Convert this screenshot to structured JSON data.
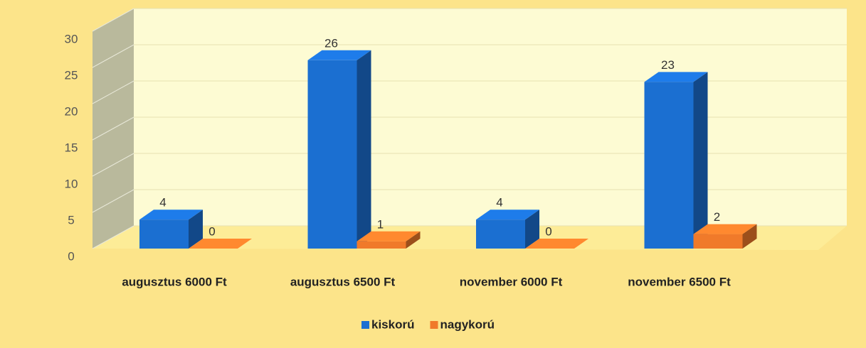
{
  "chart_data": {
    "type": "bar3d",
    "categories": [
      "augusztus 6000 Ft",
      "augusztus 6500 Ft",
      "november 6000 Ft",
      "november 6500 Ft"
    ],
    "series": [
      {
        "name": "kiskorú",
        "color": "#1b6fd1",
        "values": [
          4,
          26,
          4,
          23
        ]
      },
      {
        "name": "nagykorú",
        "color": "#f07a2a",
        "values": [
          0,
          1,
          0,
          2
        ]
      }
    ],
    "ylim": [
      0,
      30
    ],
    "yticks": [
      0,
      5,
      10,
      15,
      20,
      25,
      30
    ],
    "grid": true,
    "legend": "bottom"
  }
}
